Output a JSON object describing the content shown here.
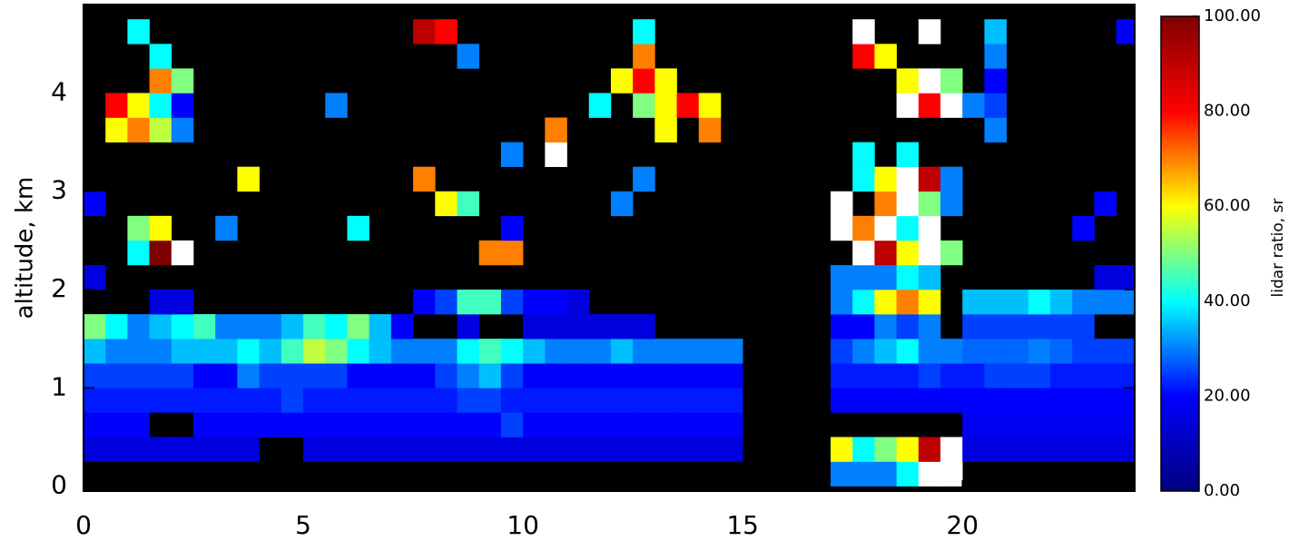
{
  "chart_data": {
    "type": "heatmap",
    "y_label": "altitude, km",
    "colorbar_label": "lidar ratio, sr",
    "xlim": [
      0,
      23.92
    ],
    "xticks": [
      0,
      5,
      10,
      15,
      20
    ],
    "ylim": [
      -0.05,
      4.9
    ],
    "yticks": [
      0,
      1,
      2,
      3,
      4
    ],
    "zlim": [
      0,
      100
    ],
    "zticks": [
      {
        "value": 0,
        "label": "0.00"
      },
      {
        "value": 20,
        "label": "20.00"
      },
      {
        "value": 40,
        "label": "40.00"
      },
      {
        "value": 60,
        "label": "60.00"
      },
      {
        "value": 80,
        "label": "80.00"
      },
      {
        "value": 100,
        "label": "100.00"
      }
    ],
    "colormap": [
      "#00007f",
      "#0000ff",
      "#00ffff",
      "#ffff00",
      "#ff0000",
      "#7f0000"
    ],
    "over_color": "#ffffff",
    "background": "#000000",
    "xbins": [
      0,
      0.5,
      1,
      1.5,
      2,
      2.5,
      3,
      3.5,
      4,
      4.5,
      5,
      5.5,
      6,
      6.5,
      7,
      7.5,
      8,
      8.5,
      9,
      9.5,
      10,
      10.5,
      11,
      11.5,
      12,
      12.5,
      13,
      13.5,
      14,
      14.5,
      15,
      15.5,
      16,
      16.5,
      17,
      17.5,
      18,
      18.5,
      19,
      19.5,
      20,
      20.5,
      21,
      21.5,
      22,
      22.5,
      23,
      23.5,
      24
    ],
    "ybins": [
      0,
      0.25,
      0.5,
      0.75,
      1,
      1.25,
      1.5,
      1.75,
      2,
      2.25,
      2.5,
      2.75,
      3,
      3.25,
      3.5,
      3.75,
      4,
      4.25,
      4.5,
      4.75
    ],
    "z": [
      [
        null,
        null,
        null,
        null,
        null,
        null,
        null,
        null,
        null,
        null,
        null,
        null,
        null,
        null,
        null,
        null,
        null,
        null,
        null,
        null,
        null,
        null,
        null,
        null,
        null,
        null,
        null,
        null,
        null,
        null,
        null,
        null,
        null,
        null,
        30,
        30,
        30,
        40,
        110,
        110,
        null,
        null,
        null,
        null,
        null,
        null,
        null,
        null
      ],
      [
        15,
        15,
        15,
        15,
        15,
        15,
        15,
        15,
        null,
        null,
        15,
        15,
        15,
        15,
        15,
        15,
        15,
        15,
        15,
        15,
        15,
        15,
        15,
        15,
        15,
        15,
        15,
        15,
        15,
        15,
        null,
        null,
        null,
        null,
        60,
        40,
        50,
        60,
        90,
        110,
        15,
        15,
        15,
        15,
        15,
        15,
        15,
        15
      ],
      [
        20,
        20,
        20,
        null,
        null,
        20,
        20,
        20,
        20,
        20,
        20,
        20,
        20,
        20,
        20,
        20,
        20,
        20,
        20,
        25,
        20,
        20,
        20,
        20,
        20,
        20,
        20,
        20,
        20,
        20,
        null,
        null,
        null,
        null,
        null,
        null,
        null,
        null,
        null,
        null,
        18,
        18,
        18,
        18,
        18,
        18,
        18,
        18
      ],
      [
        22,
        22,
        22,
        22,
        22,
        22,
        22,
        22,
        22,
        25,
        22,
        22,
        22,
        22,
        22,
        22,
        22,
        25,
        25,
        22,
        22,
        22,
        22,
        22,
        22,
        22,
        22,
        22,
        22,
        22,
        null,
        null,
        null,
        null,
        20,
        20,
        20,
        20,
        20,
        20,
        20,
        20,
        20,
        20,
        20,
        20,
        20,
        20
      ],
      [
        25,
        25,
        25,
        25,
        25,
        20,
        20,
        30,
        25,
        25,
        25,
        25,
        20,
        20,
        20,
        20,
        25,
        30,
        35,
        25,
        20,
        20,
        20,
        20,
        20,
        20,
        20,
        20,
        20,
        20,
        null,
        null,
        null,
        null,
        22,
        22,
        22,
        22,
        25,
        22,
        22,
        25,
        25,
        25,
        22,
        22,
        22,
        22
      ],
      [
        35,
        30,
        30,
        30,
        35,
        35,
        35,
        40,
        35,
        45,
        55,
        50,
        40,
        35,
        30,
        30,
        30,
        40,
        45,
        40,
        35,
        30,
        30,
        30,
        35,
        30,
        30,
        30,
        30,
        30,
        null,
        null,
        null,
        null,
        25,
        30,
        35,
        40,
        30,
        30,
        28,
        28,
        28,
        30,
        28,
        25,
        25,
        25
      ],
      [
        50,
        40,
        30,
        35,
        40,
        45,
        30,
        30,
        30,
        35,
        45,
        40,
        50,
        35,
        20,
        null,
        null,
        15,
        null,
        null,
        15,
        15,
        15,
        15,
        15,
        15,
        null,
        null,
        null,
        null,
        null,
        null,
        null,
        null,
        20,
        20,
        30,
        25,
        30,
        null,
        25,
        25,
        25,
        25,
        25,
        25,
        null,
        null
      ],
      [
        null,
        null,
        null,
        15,
        15,
        null,
        null,
        null,
        null,
        null,
        null,
        null,
        null,
        null,
        null,
        20,
        25,
        45,
        45,
        25,
        20,
        20,
        15,
        null,
        null,
        null,
        null,
        null,
        null,
        null,
        null,
        null,
        null,
        null,
        30,
        40,
        60,
        70,
        60,
        null,
        35,
        35,
        35,
        40,
        35,
        30,
        30,
        30
      ],
      [
        15,
        null,
        null,
        null,
        null,
        null,
        null,
        null,
        null,
        null,
        null,
        null,
        null,
        null,
        null,
        null,
        null,
        null,
        null,
        null,
        null,
        null,
        null,
        null,
        null,
        null,
        null,
        null,
        null,
        null,
        null,
        null,
        null,
        null,
        30,
        30,
        30,
        40,
        35,
        null,
        null,
        null,
        null,
        null,
        null,
        null,
        15,
        15
      ],
      [
        null,
        null,
        40,
        100,
        110,
        null,
        null,
        null,
        null,
        null,
        null,
        null,
        null,
        null,
        null,
        null,
        null,
        null,
        70,
        70,
        null,
        null,
        null,
        null,
        null,
        null,
        null,
        null,
        null,
        null,
        null,
        null,
        null,
        null,
        null,
        110,
        90,
        60,
        110,
        50,
        null,
        null,
        null,
        null,
        null,
        null,
        null,
        null
      ],
      [
        null,
        null,
        50,
        60,
        null,
        null,
        30,
        null,
        null,
        null,
        null,
        null,
        40,
        null,
        null,
        null,
        null,
        null,
        null,
        20,
        null,
        null,
        null,
        null,
        null,
        null,
        null,
        null,
        null,
        null,
        null,
        null,
        null,
        null,
        110,
        70,
        110,
        40,
        110,
        null,
        null,
        null,
        null,
        null,
        null,
        20,
        null,
        null
      ],
      [
        20,
        null,
        null,
        null,
        null,
        null,
        null,
        null,
        null,
        null,
        null,
        null,
        null,
        null,
        null,
        null,
        60,
        45,
        null,
        null,
        null,
        null,
        null,
        null,
        30,
        null,
        null,
        null,
        null,
        null,
        null,
        null,
        null,
        null,
        110,
        null,
        70,
        110,
        50,
        30,
        null,
        null,
        null,
        null,
        null,
        null,
        20,
        null
      ],
      [
        null,
        null,
        null,
        null,
        null,
        null,
        null,
        60,
        null,
        null,
        null,
        null,
        null,
        null,
        null,
        70,
        null,
        null,
        null,
        null,
        null,
        null,
        null,
        null,
        null,
        30,
        null,
        null,
        null,
        null,
        null,
        null,
        null,
        null,
        null,
        40,
        60,
        110,
        90,
        30,
        null,
        null,
        null,
        null,
        null,
        null,
        null,
        null
      ],
      [
        null,
        null,
        null,
        null,
        null,
        null,
        null,
        null,
        null,
        null,
        null,
        null,
        null,
        null,
        null,
        null,
        null,
        null,
        null,
        30,
        null,
        110,
        null,
        null,
        null,
        null,
        null,
        null,
        null,
        null,
        null,
        null,
        null,
        null,
        null,
        40,
        null,
        40,
        null,
        null,
        null,
        null,
        null,
        null,
        null,
        null,
        null,
        null
      ],
      [
        null,
        60,
        70,
        55,
        30,
        null,
        null,
        null,
        null,
        null,
        null,
        null,
        null,
        null,
        null,
        null,
        null,
        null,
        null,
        null,
        null,
        70,
        null,
        null,
        null,
        null,
        60,
        null,
        70,
        null,
        null,
        null,
        null,
        null,
        null,
        null,
        null,
        null,
        null,
        null,
        null,
        30,
        null,
        null,
        null,
        null,
        null,
        null
      ],
      [
        null,
        80,
        60,
        40,
        20,
        null,
        null,
        null,
        null,
        null,
        null,
        30,
        null,
        null,
        null,
        null,
        null,
        null,
        null,
        null,
        null,
        null,
        null,
        40,
        null,
        50,
        60,
        80,
        60,
        null,
        null,
        null,
        null,
        null,
        null,
        null,
        null,
        110,
        80,
        110,
        30,
        25,
        null,
        null,
        null,
        null,
        null,
        null
      ],
      [
        null,
        null,
        null,
        70,
        50,
        null,
        null,
        null,
        null,
        null,
        null,
        null,
        null,
        null,
        null,
        null,
        null,
        null,
        null,
        null,
        null,
        null,
        null,
        null,
        60,
        80,
        60,
        null,
        null,
        null,
        null,
        null,
        null,
        null,
        null,
        null,
        null,
        60,
        110,
        50,
        null,
        20,
        null,
        null,
        null,
        null,
        null,
        null
      ],
      [
        null,
        null,
        null,
        40,
        null,
        null,
        null,
        null,
        null,
        null,
        null,
        null,
        null,
        null,
        null,
        null,
        null,
        30,
        null,
        null,
        null,
        null,
        null,
        null,
        null,
        70,
        null,
        null,
        null,
        null,
        null,
        null,
        null,
        null,
        null,
        80,
        60,
        null,
        null,
        null,
        null,
        30,
        null,
        null,
        null,
        null,
        null,
        null
      ],
      [
        null,
        null,
        40,
        null,
        null,
        null,
        null,
        null,
        null,
        null,
        null,
        null,
        null,
        null,
        null,
        90,
        80,
        null,
        null,
        null,
        null,
        null,
        null,
        null,
        null,
        40,
        null,
        null,
        null,
        null,
        null,
        null,
        null,
        null,
        null,
        110,
        null,
        null,
        110,
        null,
        null,
        35,
        null,
        null,
        null,
        null,
        null,
        20
      ]
    ]
  }
}
